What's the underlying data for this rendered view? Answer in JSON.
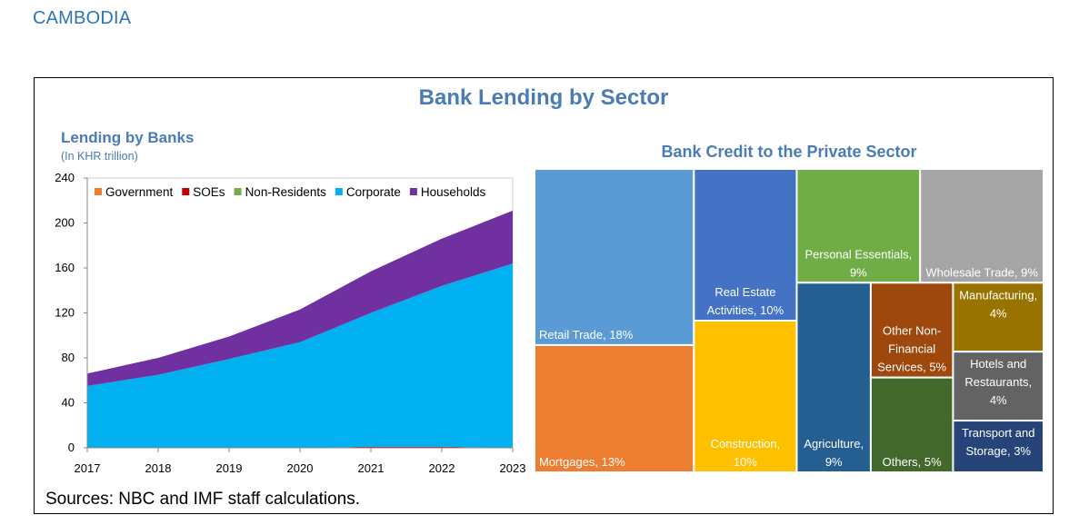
{
  "header": {
    "country": "CAMBODIA"
  },
  "figure": {
    "title": "Bank Lending by Sector",
    "sources": "Sources: NBC and IMF staff calculations."
  },
  "colors": {
    "Government": "#ed7d31",
    "SOEs": "#c00000",
    "Non-Residents": "#70ad47",
    "Corporate": "#00b0f0",
    "Households": "#7030a0"
  },
  "chart_data": [
    {
      "type": "area",
      "title": "Lending by Banks",
      "subtitle": "(In KHR trillion)",
      "x": [
        "2017",
        "2018",
        "2019",
        "2020",
        "2021",
        "2022",
        "2023"
      ],
      "ylim": [
        0,
        240
      ],
      "yticks": [
        "0",
        "40",
        "80",
        "120",
        "160",
        "200",
        "240"
      ],
      "stacked": true,
      "legend": "top",
      "series": [
        {
          "name": "Government",
          "values": [
            0,
            0,
            0,
            0,
            0,
            0,
            0
          ]
        },
        {
          "name": "SOEs",
          "values": [
            0,
            0,
            0,
            0,
            1,
            1,
            0
          ]
        },
        {
          "name": "Non-Residents",
          "values": [
            0,
            0,
            0,
            0,
            0,
            0,
            0
          ]
        },
        {
          "name": "Corporate",
          "values": [
            55,
            65,
            79,
            94,
            119,
            143,
            164
          ]
        },
        {
          "name": "Households",
          "values": [
            11,
            15,
            20,
            29,
            37,
            42,
            47
          ]
        }
      ]
    },
    {
      "type": "treemap",
      "title": "Bank Credit to the Private Sector",
      "cells": [
        {
          "name": "Retail Trade, 18%",
          "lines": [
            "Retail Trade, 18%"
          ],
          "value": 18,
          "color": "#5b9bd5"
        },
        {
          "name": "Mortgages, 13%",
          "lines": [
            "Mortgages, 13%"
          ],
          "value": 13,
          "color": "#ed7d31"
        },
        {
          "name": "Real Estate Activities, 10%",
          "lines": [
            "Real Estate",
            "Activities, 10%"
          ],
          "value": 10,
          "color": "#4472c4"
        },
        {
          "name": "Construction, 10%",
          "lines": [
            "Construction,",
            "10%"
          ],
          "value": 10,
          "color": "#ffc000"
        },
        {
          "name": "Personal Essentials, 9%",
          "lines": [
            "Personal Essentials,",
            "9%"
          ],
          "value": 9,
          "color": "#70ad47"
        },
        {
          "name": "Wholesale Trade, 9%",
          "lines": [
            "Wholesale Trade, 9%"
          ],
          "value": 9,
          "color": "#a5a5a5"
        },
        {
          "name": "Agriculture, 9%",
          "lines": [
            "Agriculture,",
            "9%"
          ],
          "value": 9,
          "color": "#255e91"
        },
        {
          "name": "Other Non-Financial Services, 5%",
          "lines": [
            "Other Non-",
            "Financial",
            "Services, 5%"
          ],
          "value": 5,
          "color": "#9e480e"
        },
        {
          "name": "Others, 5%",
          "lines": [
            "Others, 5%"
          ],
          "value": 5,
          "color": "#43682b"
        },
        {
          "name": "Manufacturing, 4%",
          "lines": [
            "Manufacturing,",
            "4%"
          ],
          "value": 4,
          "color": "#997300"
        },
        {
          "name": "Hotels and Restaurants, 4%",
          "lines": [
            "Hotels and",
            "Restaurants,",
            "4%"
          ],
          "value": 4,
          "color": "#636363"
        },
        {
          "name": "Transport and Storage, 3%",
          "lines": [
            "Transport and",
            "Storage, 3%"
          ],
          "value": 3,
          "color": "#264478"
        }
      ]
    }
  ]
}
